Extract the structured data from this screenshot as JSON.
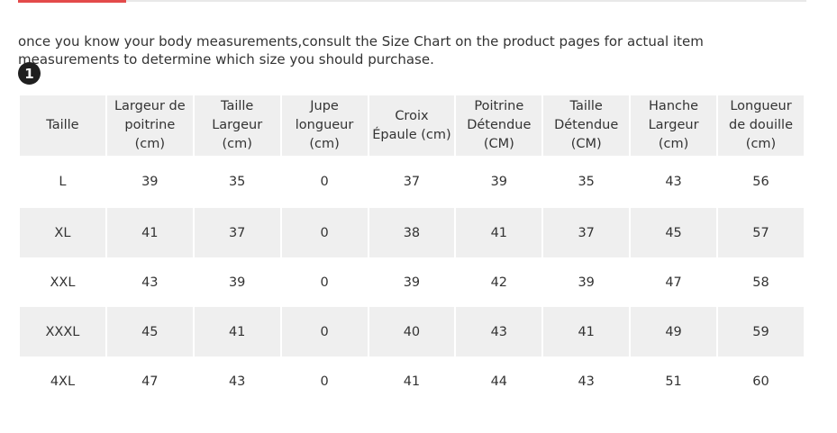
{
  "intro": {
    "text": "once you know your body measurements,consult the Size Chart on the product pages for actual item measurements to determine which size you should purchase."
  },
  "step_badge": "1",
  "colors": {
    "accent": "#e34a4a",
    "header_bg": "#efefef",
    "stripe_bg": "#efefef",
    "text": "#333333"
  },
  "table": {
    "columns": [
      "Taille",
      "Largeur de poitrine (cm)",
      "Taille Largeur (cm)",
      "Jupe longueur (cm)",
      "Croix Épaule (cm)",
      "Poitrine Détendue (CM)",
      "Taille Détendue (CM)",
      "Hanche Largeur (cm)",
      "Longueur de douille (cm)"
    ],
    "rows": [
      [
        "L",
        "39",
        "35",
        "0",
        "37",
        "39",
        "35",
        "43",
        "56"
      ],
      [
        "XL",
        "41",
        "37",
        "0",
        "38",
        "41",
        "37",
        "45",
        "57"
      ],
      [
        "XXL",
        "43",
        "39",
        "0",
        "39",
        "42",
        "39",
        "47",
        "58"
      ],
      [
        "XXXL",
        "45",
        "41",
        "0",
        "40",
        "43",
        "41",
        "49",
        "59"
      ],
      [
        "4XL",
        "47",
        "43",
        "0",
        "41",
        "44",
        "43",
        "51",
        "60"
      ]
    ]
  }
}
